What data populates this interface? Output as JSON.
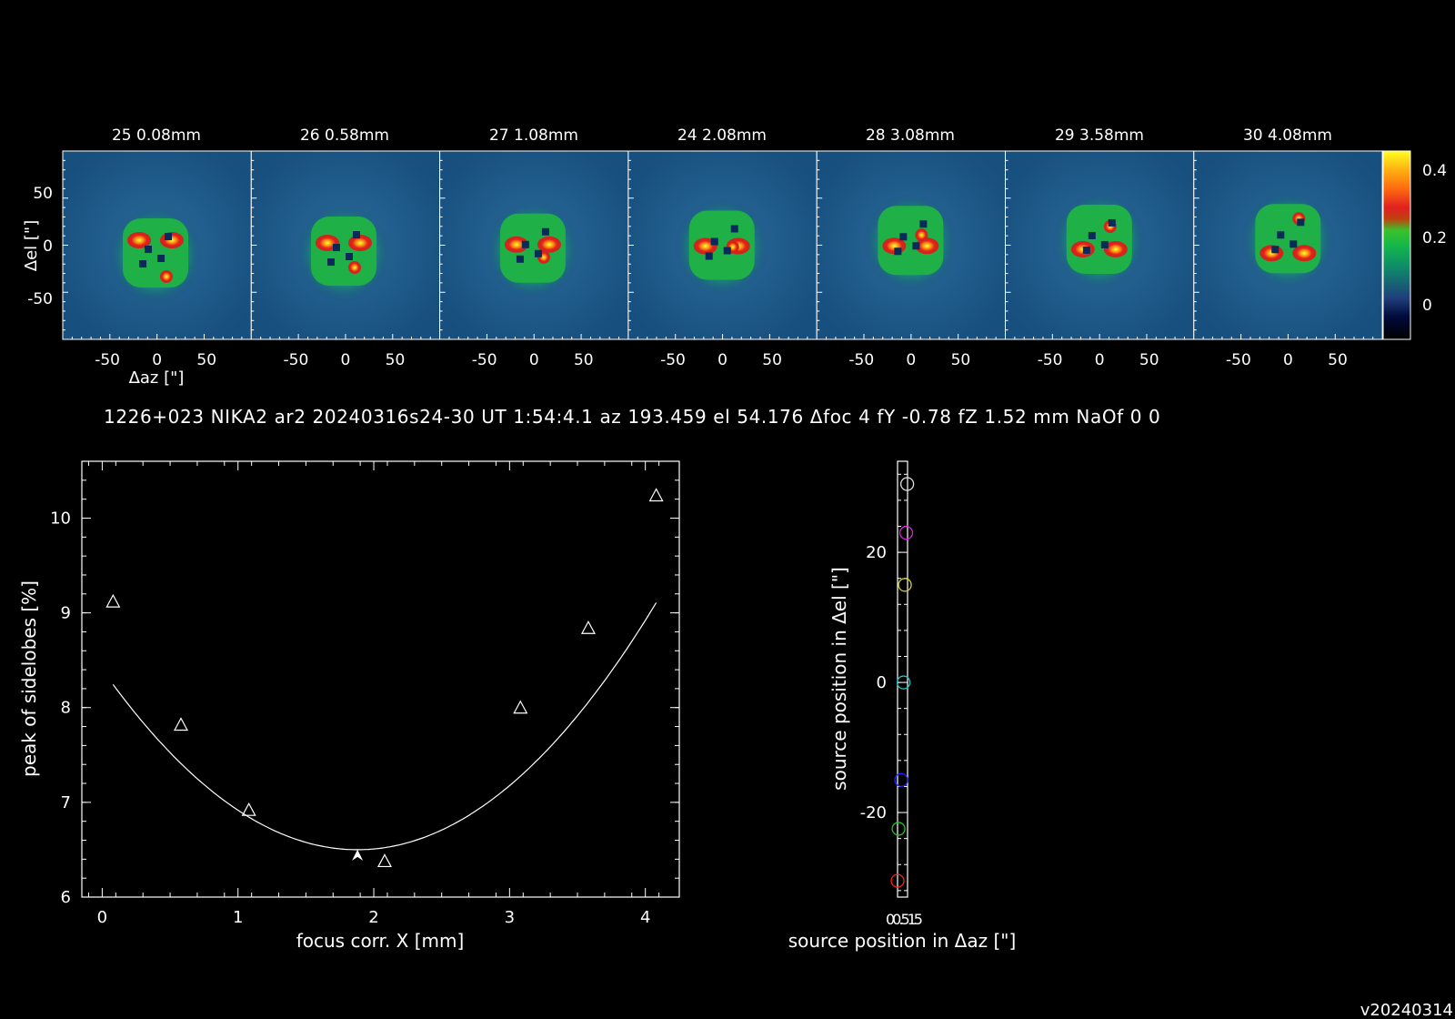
{
  "panels": {
    "titles": [
      "25 0.08mm",
      "26 0.58mm",
      "27 1.08mm",
      "24 2.08mm",
      "28 3.08mm",
      "29 3.58mm",
      "30 4.08mm"
    ],
    "x_ticks": [
      "-50",
      "0",
      "50"
    ],
    "y_ticks": [
      "50",
      "0",
      "-50"
    ],
    "xlabel": "Δaz [\"]",
    "ylabel": "Δel [\"]",
    "colorbar_ticks": [
      "0.4",
      "0.2",
      "0"
    ],
    "colorbar_range": [
      -0.1,
      0.45
    ],
    "beam_peaks": [
      {
        "dx": -10,
        "dy": -13
      },
      {
        "dx": -12,
        "dy": -10
      },
      {
        "dx": -8,
        "dy": -5
      },
      {
        "dx": -5,
        "dy": 0
      },
      {
        "dx": -3,
        "dy": 8
      },
      {
        "dx": -2,
        "dy": 10
      },
      {
        "dx": -1,
        "dy": 11
      }
    ]
  },
  "info_line": "1226+023 NIKA2 ar2 20240316s24-30 UT 1:54:4.1 az 193.459 el 54.176 Δfoc 4 fY -0.78 fZ 1.52 mm NaOf 0 0",
  "version": "v20240314",
  "chart_data": [
    {
      "type": "scatter",
      "xlabel": "focus corr. X [mm]",
      "ylabel": "peak of sidelobes [%]",
      "xlim": [
        -0.15,
        4.25
      ],
      "ylim": [
        6,
        10.6
      ],
      "x_ticks": [
        0,
        1,
        2,
        3,
        4
      ],
      "y_ticks": [
        6,
        7,
        8,
        9,
        10
      ],
      "points": [
        {
          "x": 0.08,
          "y": 9.12
        },
        {
          "x": 0.58,
          "y": 7.82
        },
        {
          "x": 1.08,
          "y": 6.92
        },
        {
          "x": 2.08,
          "y": 6.38
        },
        {
          "x": 3.08,
          "y": 8.0
        },
        {
          "x": 3.58,
          "y": 8.84
        },
        {
          "x": 4.08,
          "y": 10.24
        }
      ],
      "fit": {
        "type": "quadratic",
        "a": 0.5385,
        "b": -2.0242,
        "c": 8.4024
      },
      "minimum": {
        "x": 1.88,
        "y": 6.5
      }
    },
    {
      "type": "scatter",
      "xlabel": "source position in Δaz [\"]",
      "ylabel": "source position in Δel [\"]",
      "xlim": [
        0,
        1.5
      ],
      "ylim": [
        -33,
        34
      ],
      "x_tick_labels": [
        "0",
        "0.5",
        "1",
        "5"
      ],
      "y_ticks": [
        -20,
        0,
        20
      ],
      "points": [
        {
          "x": 0.0,
          "y": -30.5,
          "color": "#ff2020"
        },
        {
          "x": 0.15,
          "y": -22.5,
          "color": "#20c020"
        },
        {
          "x": 0.55,
          "y": -15,
          "color": "#2020ff"
        },
        {
          "x": 0.9,
          "y": 0,
          "color": "#20c0c0"
        },
        {
          "x": 1.1,
          "y": 15,
          "color": "#d0d020"
        },
        {
          "x": 1.3,
          "y": 23,
          "color": "#e020e0"
        },
        {
          "x": 1.45,
          "y": 30.5,
          "color": "#e0e0e0"
        }
      ]
    }
  ]
}
